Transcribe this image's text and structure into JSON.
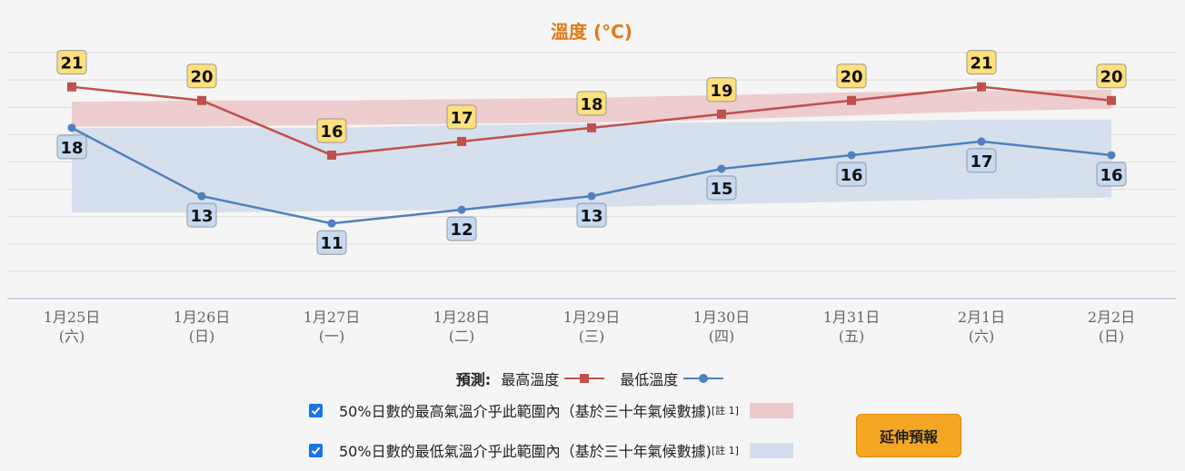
{
  "chart_data": {
    "type": "line",
    "title": "溫度 (°C)",
    "categories": [
      {
        "date": "1月25日",
        "weekday": "(六)"
      },
      {
        "date": "1月26日",
        "weekday": "(日)"
      },
      {
        "date": "1月27日",
        "weekday": "(一)"
      },
      {
        "date": "1月28日",
        "weekday": "(二)"
      },
      {
        "date": "1月29日",
        "weekday": "(三)"
      },
      {
        "date": "1月30日",
        "weekday": "(四)"
      },
      {
        "date": "1月31日",
        "weekday": "(五)"
      },
      {
        "date": "2月1日",
        "weekday": "(六)"
      },
      {
        "date": "2月2日",
        "weekday": "(日)"
      }
    ],
    "ylim": [
      5.5,
      24.5
    ],
    "grid": true,
    "series": [
      {
        "name": "最高溫度",
        "values": [
          21,
          20,
          16,
          17,
          18,
          19,
          20,
          21,
          20
        ],
        "color": "#c0504d",
        "marker": "square",
        "label_bg": "#ffe07a"
      },
      {
        "name": "最低溫度",
        "values": [
          18,
          13,
          11,
          12,
          13,
          15,
          16,
          17,
          16
        ],
        "color": "#4f81bd",
        "marker": "circle",
        "label_bg": "#c5d9f1"
      }
    ],
    "bands": [
      {
        "name": "50%日數的最高氣溫介乎此範圍內",
        "color": "#ecc9ca",
        "lower": [
          18.1,
          18.1,
          18.2,
          18.3,
          18.4,
          18.6,
          18.9,
          19.2,
          19.4
        ],
        "upper": [
          19.9,
          20.0,
          20.0,
          20.1,
          20.2,
          20.4,
          20.6,
          20.7,
          20.8
        ]
      },
      {
        "name": "50%日數的最低氣溫介乎此範圍內",
        "color": "#d2deeb",
        "lower": [
          11.8,
          11.8,
          11.9,
          12.0,
          12.2,
          12.4,
          12.6,
          12.8,
          12.9
        ],
        "upper": [
          18.0,
          18.0,
          18.0,
          18.2,
          18.3,
          18.4,
          18.5,
          18.6,
          18.6
        ]
      }
    ]
  },
  "legend": {
    "prefix": "預測:",
    "max_label": "最高溫度",
    "min_label": "最低溫度"
  },
  "options": [
    {
      "label": "50%日數的最高氣溫介乎此範圍內（基於三十年氣候數據)",
      "note": "[註 1]",
      "checked": true,
      "swatch": "#ecc9ca"
    },
    {
      "label": "50%日數的最低氣溫介乎此範圍內（基於三十年氣候數據)",
      "note": "[註 1]",
      "checked": true,
      "swatch": "#d2deeb"
    }
  ],
  "button": {
    "label": "延伸預報"
  },
  "colors": {
    "title": "#e07b16",
    "grid": "#dcdcdc",
    "axis": "#c7c7e6",
    "axis_text": "#666666"
  }
}
